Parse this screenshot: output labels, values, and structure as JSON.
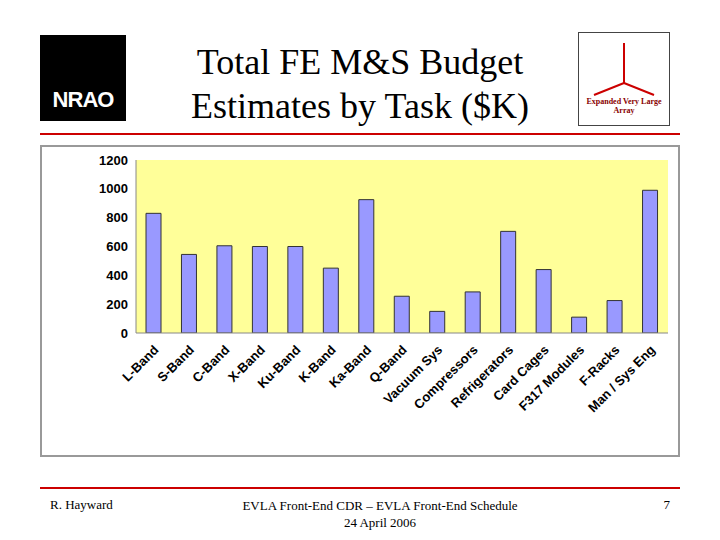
{
  "chart_data": {
    "type": "bar",
    "title": "Total FE M&S Budget Estimates by Task ($K)",
    "categories": [
      "L-Band",
      "S-Band",
      "C-Band",
      "X-Band",
      "Ku-Band",
      "K-Band",
      "Ka-Band",
      "Q-Band",
      "Vacuum Sys",
      "Compressors",
      "Refrigerators",
      "Card Cages",
      "F317 Modules",
      "F-Racks",
      "Man / Sys Eng"
    ],
    "values": [
      830,
      545,
      605,
      600,
      600,
      450,
      925,
      255,
      150,
      285,
      705,
      440,
      110,
      225,
      990
    ],
    "color": "#9999ff",
    "ylim": [
      0,
      1200
    ],
    "yticks": [
      0,
      200,
      400,
      600,
      800,
      1000,
      1200
    ],
    "grid": false,
    "data_labels": false
  },
  "slide": {
    "logos": [
      "NRAO",
      "Expanded Very Large Array"
    ],
    "footer": {
      "author": "R. Hayward",
      "event": "EVLA Front-End CDR – EVLA Front-End Schedule",
      "date": "24 April 2006",
      "page": 7
    }
  }
}
